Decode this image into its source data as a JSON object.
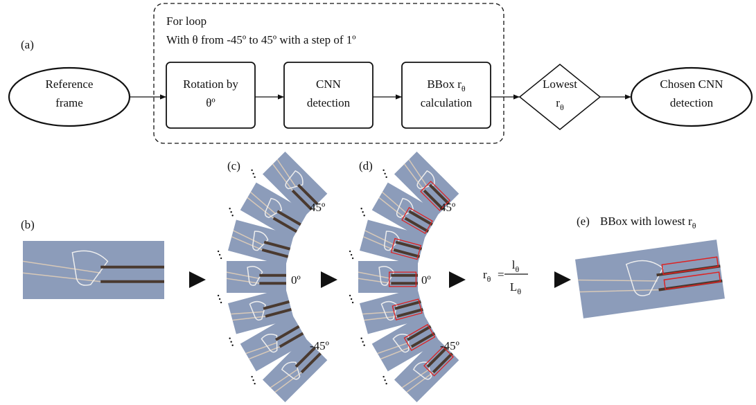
{
  "panel_a": {
    "label": "(a)",
    "loop": {
      "title": "For loop",
      "range": "With θ from -45º to 45º with a step of 1º"
    },
    "nodes": [
      {
        "lines": [
          [
            "Reference"
          ],
          [
            "frame"
          ]
        ]
      },
      {
        "lines": [
          [
            "Rotation by"
          ],
          [
            "θº"
          ]
        ]
      },
      {
        "lines": [
          [
            "CNN"
          ],
          [
            "detection"
          ]
        ]
      },
      {
        "lines": [
          [
            "BBox r",
            {
              "sub": "θ"
            }
          ],
          [
            "calculation"
          ]
        ]
      },
      {
        "lines": [
          [
            "Lowest"
          ],
          [
            "r",
            {
              "sub": "θ"
            }
          ]
        ]
      },
      {
        "lines": [
          [
            "Chosen CNN"
          ],
          [
            "detection"
          ]
        ]
      }
    ]
  },
  "panel_b": {
    "label": "(b)"
  },
  "panel_c": {
    "label": "(c)",
    "angle_labels": [
      "45º",
      "0º",
      "-45º"
    ]
  },
  "panel_d": {
    "label": "(d)",
    "angle_labels": [
      "45º",
      "0º",
      "-45º"
    ]
  },
  "equation": {
    "lhs": [
      "r",
      {
        "sub": "θ"
      }
    ],
    "equals": "=",
    "numerator": [
      "l",
      {
        "sub": "θ"
      }
    ],
    "denominator": [
      "L",
      {
        "sub": "θ"
      }
    ]
  },
  "panel_e": {
    "label": "(e)",
    "caption": [
      "BBox with lowest r",
      {
        "sub": "θ"
      }
    ]
  }
}
